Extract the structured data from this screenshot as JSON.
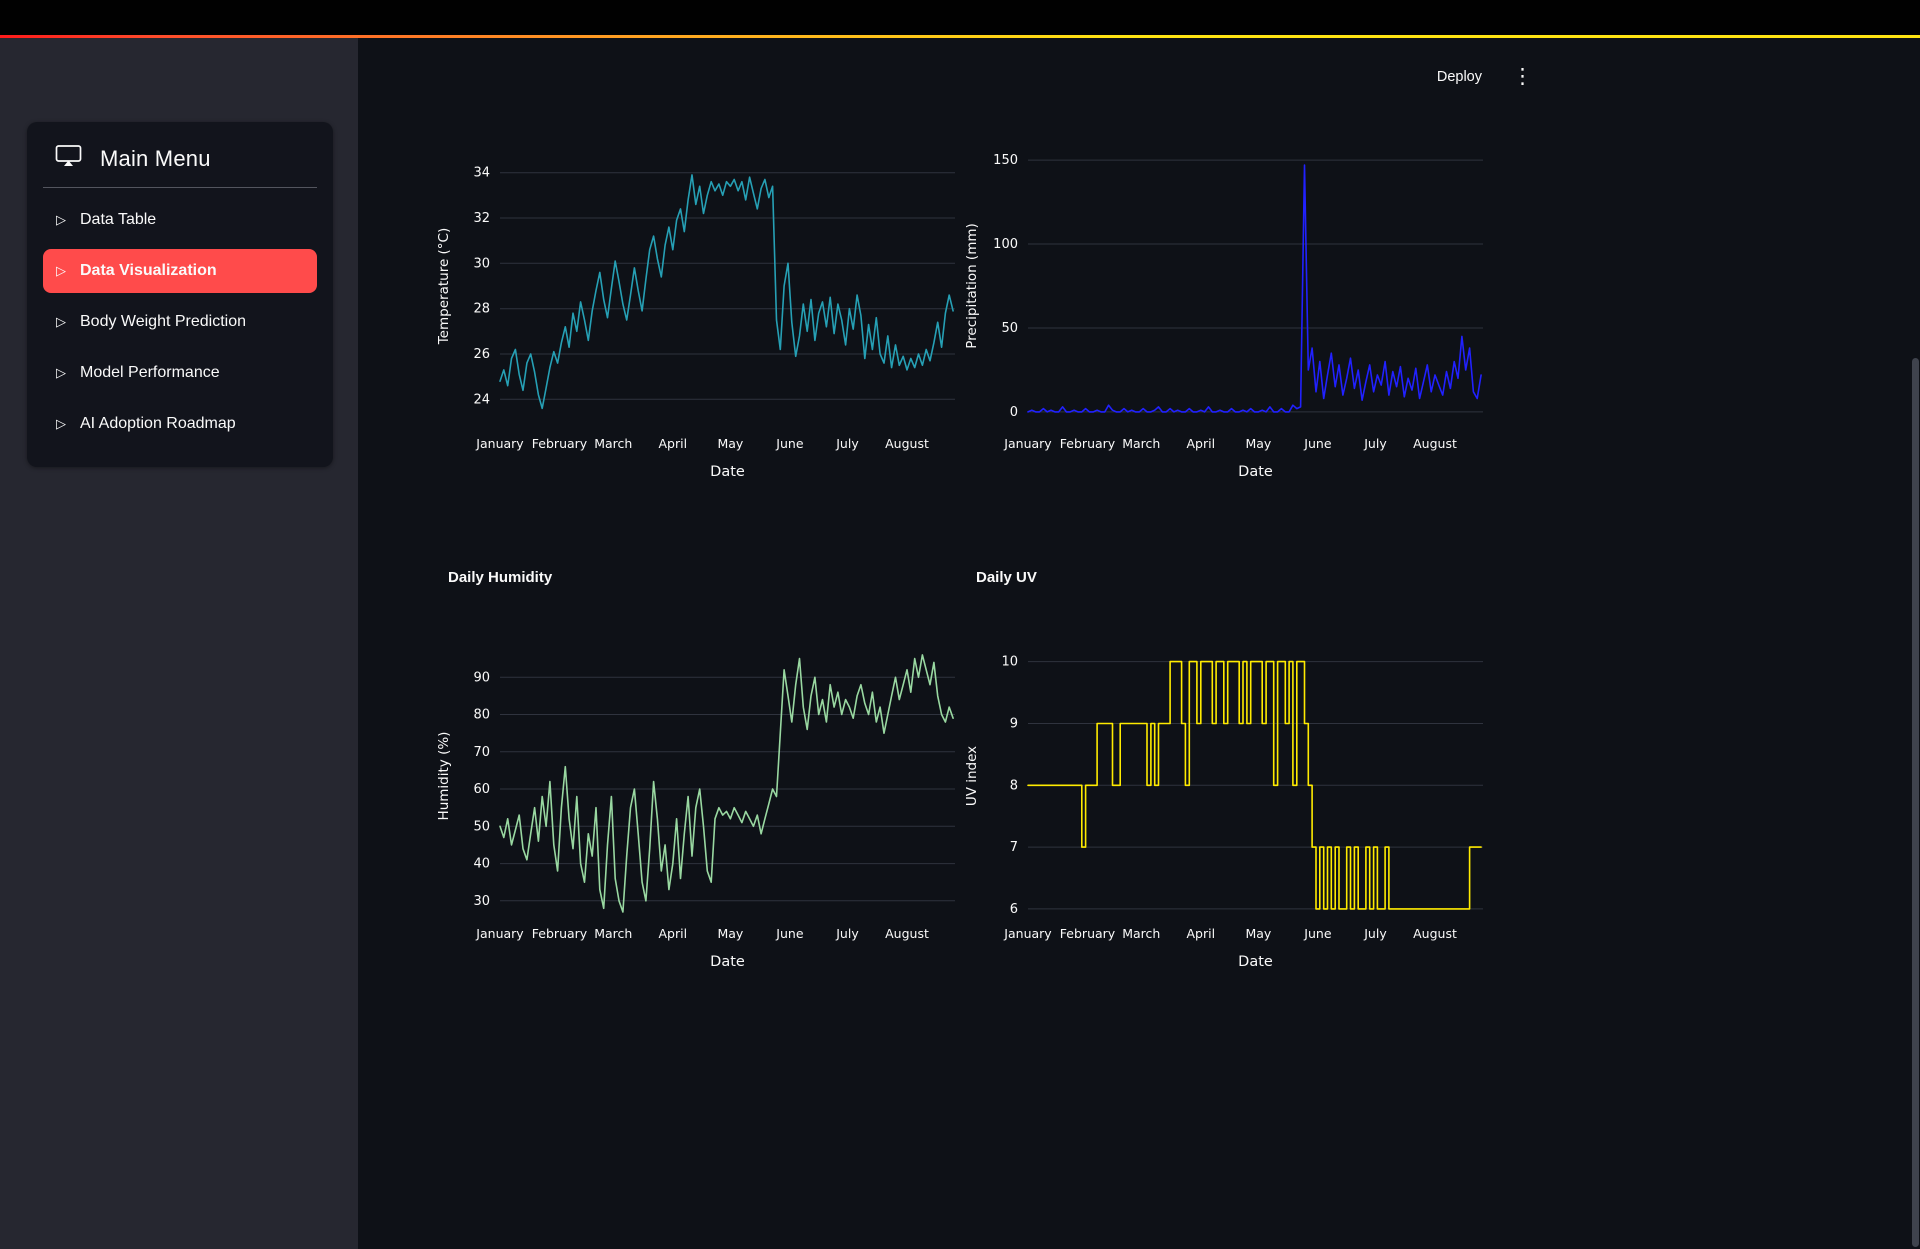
{
  "header": {
    "deploy_label": "Deploy",
    "kebab_icon": "⋮"
  },
  "sidebar": {
    "title": "Main Menu",
    "accent_color": "#ff4b4b",
    "items": [
      {
        "label": "Data Table",
        "selected": false
      },
      {
        "label": "Data Visualization",
        "selected": true
      },
      {
        "label": "Body Weight Prediction",
        "selected": false
      },
      {
        "label": "Model Performance",
        "selected": false
      },
      {
        "label": "AI Adoption Roadmap",
        "selected": false
      }
    ]
  },
  "chart_data": [
    {
      "type": "line",
      "title": "",
      "xlabel": "Date",
      "ylabel": "Temperature (°C)",
      "color": "#26a0b5",
      "grid": true,
      "legend": "none",
      "ylim": [
        23,
        35
      ],
      "y_ticks": [
        24,
        26,
        28,
        30,
        32,
        34
      ],
      "x_span_days": 237,
      "x_step_days": 2,
      "x_ticks": {
        "labels": [
          "January",
          "February",
          "March",
          "April",
          "May",
          "June",
          "July",
          "August"
        ],
        "days": [
          0,
          31,
          59,
          90,
          120,
          151,
          181,
          212
        ]
      },
      "values": [
        24.8,
        25.3,
        24.6,
        25.8,
        26.2,
        25.1,
        24.4,
        25.6,
        26.0,
        25.2,
        24.2,
        23.6,
        24.5,
        25.4,
        26.1,
        25.6,
        26.5,
        27.2,
        26.3,
        27.8,
        27.0,
        28.3,
        27.5,
        26.6,
        27.9,
        28.8,
        29.6,
        28.4,
        27.6,
        28.9,
        30.1,
        29.2,
        28.2,
        27.5,
        28.6,
        29.8,
        28.8,
        27.9,
        29.3,
        30.6,
        31.2,
        30.2,
        29.4,
        30.8,
        31.6,
        30.6,
        31.9,
        32.4,
        31.4,
        32.8,
        33.9,
        32.6,
        33.4,
        32.2,
        33.0,
        33.6,
        33.2,
        33.5,
        33.0,
        33.6,
        33.4,
        33.7,
        33.2,
        33.6,
        32.8,
        33.8,
        33.1,
        32.4,
        33.3,
        33.7,
        32.9,
        33.4,
        27.5,
        26.2,
        29.0,
        30.0,
        27.4,
        25.9,
        26.8,
        28.2,
        27.0,
        28.4,
        26.6,
        27.8,
        28.3,
        27.2,
        28.5,
        26.9,
        28.2,
        27.5,
        26.4,
        28.0,
        27.1,
        28.6,
        27.7,
        25.8,
        27.3,
        26.2,
        27.6,
        26.0,
        25.6,
        26.8,
        25.4,
        26.4,
        25.5,
        25.9,
        25.3,
        25.8,
        25.4,
        26.0,
        25.5,
        26.2,
        25.7,
        26.5,
        27.4,
        26.3,
        27.8,
        28.6,
        27.9
      ]
    },
    {
      "type": "line",
      "title": "",
      "xlabel": "Date",
      "ylabel": "Precipitation (mm)",
      "color": "#2121ff",
      "grid": true,
      "legend": "none",
      "ylim": [
        -6,
        156
      ],
      "y_ticks": [
        0,
        50,
        100,
        150
      ],
      "x_span_days": 237,
      "x_step_days": 2,
      "x_ticks": {
        "labels": [
          "January",
          "February",
          "March",
          "April",
          "May",
          "June",
          "July",
          "August"
        ],
        "days": [
          0,
          31,
          59,
          90,
          120,
          151,
          181,
          212
        ]
      },
      "values": [
        0,
        1,
        0,
        0,
        2,
        0,
        1,
        0,
        0,
        3,
        0,
        0,
        1,
        0,
        0,
        2,
        0,
        0,
        1,
        0,
        0,
        4,
        1,
        0,
        0,
        2,
        0,
        1,
        0,
        0,
        2,
        0,
        0,
        1,
        3,
        0,
        0,
        2,
        0,
        1,
        0,
        0,
        2,
        0,
        0,
        1,
        0,
        3,
        0,
        0,
        1,
        0,
        0,
        2,
        0,
        0,
        1,
        0,
        2,
        0,
        0,
        1,
        0,
        3,
        0,
        0,
        2,
        0,
        0,
        4,
        2,
        3,
        147,
        25,
        38,
        12,
        30,
        8,
        22,
        35,
        15,
        28,
        10,
        20,
        32,
        14,
        25,
        7,
        18,
        28,
        12,
        22,
        16,
        30,
        10,
        24,
        15,
        27,
        9,
        20,
        13,
        26,
        8,
        18,
        28,
        12,
        22,
        16,
        10,
        24,
        14,
        30,
        20,
        45,
        25,
        38,
        12,
        8,
        22
      ]
    },
    {
      "type": "line",
      "title": "Daily Humidity",
      "xlabel": "Date",
      "ylabel": "Humidity (%)",
      "color": "#99d8a1",
      "grid": true,
      "legend": "none",
      "ylim": [
        27,
        100
      ],
      "y_ticks": [
        30,
        40,
        50,
        60,
        70,
        80,
        90
      ],
      "x_span_days": 237,
      "x_step_days": 2,
      "x_ticks": {
        "labels": [
          "January",
          "February",
          "March",
          "April",
          "May",
          "June",
          "July",
          "August"
        ],
        "days": [
          0,
          31,
          59,
          90,
          120,
          151,
          181,
          212
        ]
      },
      "values": [
        50,
        47,
        52,
        45,
        49,
        53,
        44,
        41,
        48,
        55,
        46,
        58,
        50,
        62,
        45,
        38,
        55,
        66,
        52,
        44,
        58,
        40,
        35,
        48,
        42,
        55,
        33,
        28,
        45,
        58,
        36,
        30,
        27,
        42,
        55,
        60,
        48,
        35,
        30,
        44,
        62,
        52,
        38,
        45,
        33,
        40,
        52,
        36,
        48,
        58,
        42,
        55,
        60,
        50,
        38,
        35,
        52,
        55,
        53,
        54,
        52,
        55,
        53,
        51,
        54,
        52,
        50,
        53,
        48,
        52,
        56,
        60,
        58,
        75,
        92,
        85,
        78,
        88,
        95,
        82,
        76,
        85,
        90,
        80,
        84,
        78,
        88,
        82,
        86,
        80,
        84,
        82,
        79,
        85,
        88,
        83,
        80,
        86,
        78,
        82,
        75,
        80,
        85,
        90,
        84,
        88,
        92,
        86,
        95,
        90,
        96,
        92,
        88,
        94,
        85,
        80,
        78,
        82,
        79
      ]
    },
    {
      "type": "line",
      "line_shape": "step",
      "title": "Daily UV",
      "xlabel": "Date",
      "ylabel": "UV index",
      "color": "#ffeb00",
      "grid": true,
      "legend": "none",
      "ylim": [
        5.95,
        10.35
      ],
      "y_ticks": [
        6,
        7,
        8,
        9,
        10
      ],
      "x_span_days": 237,
      "x_step_days": 2,
      "x_ticks": {
        "labels": [
          "January",
          "February",
          "March",
          "April",
          "May",
          "June",
          "July",
          "August"
        ],
        "days": [
          0,
          31,
          59,
          90,
          120,
          151,
          181,
          212
        ]
      },
      "values": [
        8,
        8,
        8,
        8,
        8,
        8,
        8,
        8,
        8,
        8,
        8,
        8,
        8,
        8,
        7,
        8,
        8,
        8,
        9,
        9,
        9,
        9,
        8,
        8,
        9,
        9,
        9,
        9,
        9,
        9,
        9,
        8,
        9,
        8,
        9,
        9,
        9,
        10,
        10,
        10,
        9,
        8,
        10,
        10,
        9,
        10,
        10,
        10,
        9,
        10,
        10,
        9,
        10,
        10,
        10,
        9,
        10,
        9,
        10,
        10,
        10,
        9,
        10,
        10,
        8,
        10,
        10,
        9,
        10,
        8,
        10,
        10,
        9,
        8,
        7,
        6,
        7,
        6,
        7,
        6,
        7,
        6,
        6,
        7,
        6,
        7,
        6,
        6,
        7,
        6,
        7,
        6,
        6,
        7,
        6,
        6,
        6,
        6,
        6,
        6,
        6,
        6,
        6,
        6,
        6,
        6,
        6,
        6,
        6,
        6,
        6,
        6,
        6,
        6,
        6,
        7,
        7,
        7,
        7
      ]
    }
  ],
  "theme": {
    "app_background": "#0e1117",
    "sidebar_background": "#262730",
    "card_background": "#12141c",
    "text_color": "#fafafa",
    "grid_color": "#2f333e"
  }
}
